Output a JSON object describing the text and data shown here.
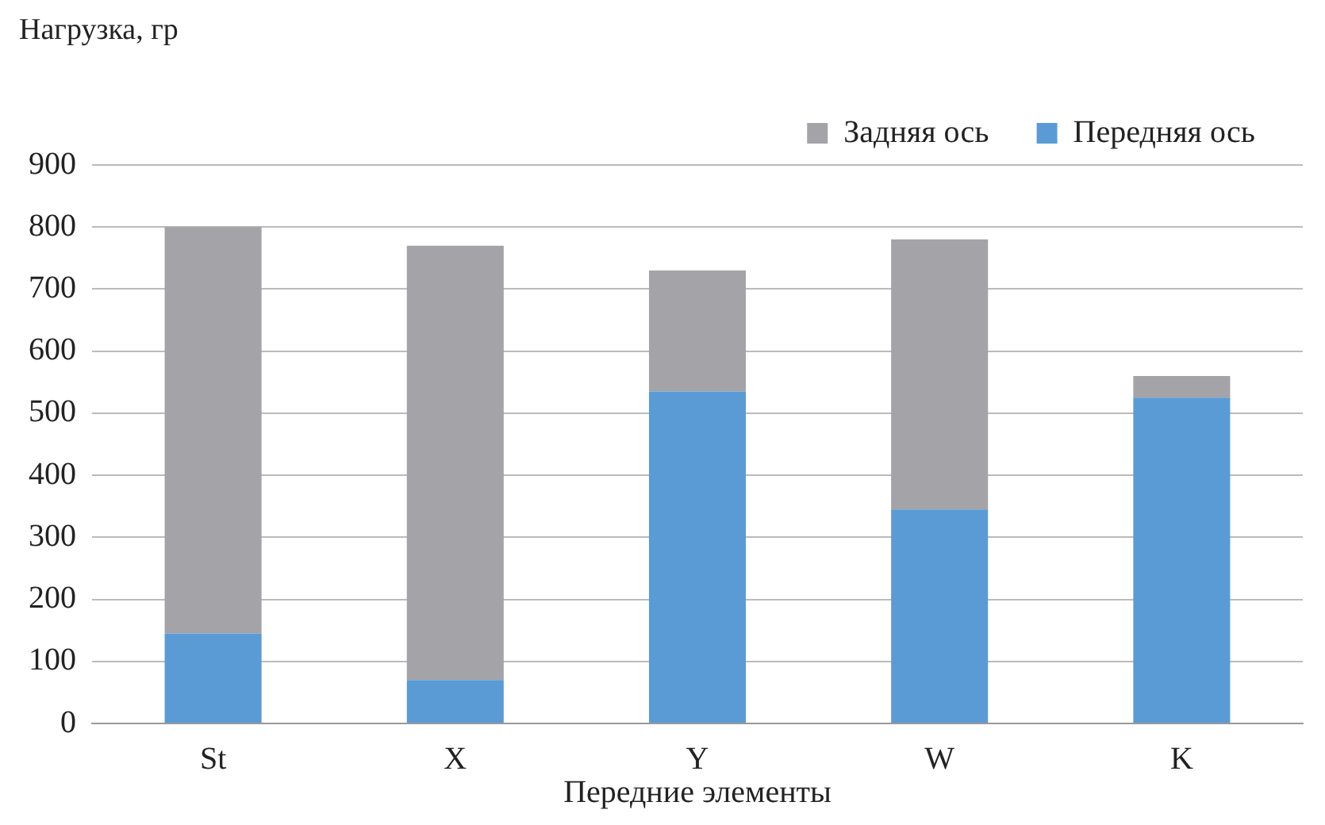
{
  "chart_data": {
    "type": "bar",
    "ylabel": "Нагрузка, гр",
    "xlabel": "Передние элементы",
    "categories": [
      "St",
      "X",
      "Y",
      "W",
      "K"
    ],
    "series": [
      {
        "name": "Передняя ось",
        "color": "#5b9bd5",
        "values": [
          145,
          70,
          535,
          345,
          525
        ]
      },
      {
        "name": "Задняя ось",
        "color": "#a3a3a8",
        "values": [
          655,
          700,
          195,
          435,
          35
        ]
      }
    ],
    "stacked": true,
    "ylim": [
      0,
      900
    ],
    "yticks": [
      0,
      100,
      200,
      300,
      400,
      500,
      600,
      700,
      800,
      900
    ],
    "grid": "y",
    "legend": "top right"
  }
}
